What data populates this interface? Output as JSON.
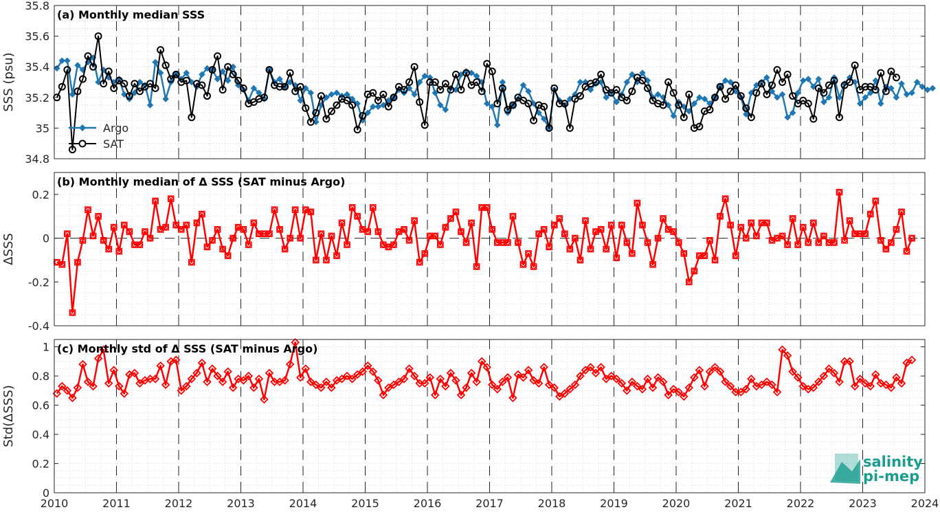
{
  "chart_data": [
    {
      "type": "line",
      "title": "(a) Monthly median SSS",
      "ylabel": "SSS (psu)",
      "xlim": [
        2010,
        2024
      ],
      "ylim": [
        34.8,
        35.8
      ],
      "xticks": [
        2010,
        2011,
        2012,
        2013,
        2014,
        2015,
        2016,
        2017,
        2018,
        2019,
        2020,
        2021,
        2022,
        2023,
        2024
      ],
      "yticks": [
        34.8,
        35,
        35.2,
        35.4,
        35.6,
        35.8
      ],
      "ytick_labels": [
        "34.8",
        "35",
        "35.2",
        "35.4",
        "35.6",
        "35.8"
      ],
      "grid": true,
      "legend_position": "bottom-left",
      "series": [
        {
          "name": "Argo",
          "color": "#1f77b4",
          "marker": "diamond",
          "x_start": 2010.0417,
          "x_step": 0.08333,
          "values": [
            35.39,
            35.44,
            35.44,
            35.22,
            35.41,
            35.38,
            35.43,
            35.46,
            35.3,
            35.38,
            35.33,
            35.3,
            35.32,
            35.22,
            35.19,
            35.23,
            35.3,
            35.28,
            35.15,
            35.43,
            35.36,
            35.19,
            35.3,
            35.35,
            35.32,
            35.36,
            35.3,
            35.27,
            35.35,
            35.39,
            35.38,
            35.32,
            35.37,
            35.31,
            35.4,
            35.28,
            35.25,
            35.18,
            35.26,
            35.23,
            35.19,
            35.38,
            35.3,
            35.32,
            35.27,
            35.3,
            35.28,
            35.18,
            35.26,
            35.23,
            35.04,
            35.15,
            35.2,
            35.22,
            35.23,
            35.21,
            35.22,
            35.19,
            35.16,
            35.05,
            35.1,
            35.14,
            35.14,
            35.15,
            35.18,
            35.2,
            35.25,
            35.23,
            35.26,
            35.22,
            35.3,
            35.34,
            35.33,
            35.23,
            35.15,
            35.12,
            35.26,
            35.25,
            35.35,
            35.37,
            35.36,
            35.34,
            35.3,
            35.16,
            35.14,
            35.02,
            35.3,
            35.1,
            35.15,
            35.19,
            35.28,
            35.24,
            35.16,
            35.1,
            35.06,
            35.0,
            35.25,
            35.18,
            35.15,
            35.19,
            35.22,
            35.3,
            35.3,
            35.25,
            35.29,
            35.3,
            35.2,
            35.23,
            35.17,
            35.22,
            35.3,
            35.35,
            35.3,
            35.36,
            35.31,
            35.2,
            35.22,
            35.2,
            35.15,
            35.08,
            35.17,
            35.14,
            35.11,
            35.16,
            35.2,
            35.19,
            35.16,
            35.2,
            35.27,
            35.31,
            35.3,
            35.24,
            35.2,
            35.09,
            35.23,
            35.28,
            35.3,
            35.33,
            35.24,
            35.2,
            35.22,
            35.07,
            35.1,
            35.23,
            35.31,
            35.32,
            35.27,
            35.32,
            35.17,
            35.2,
            35.33,
            35.2,
            35.29,
            35.33,
            35.3,
            35.16,
            35.2,
            35.23,
            35.31,
            35.16,
            35.27,
            35.26,
            35.2,
            35.29,
            35.22,
            35.23,
            35.3,
            35.27,
            35.25,
            35.26
          ]
        },
        {
          "name": "SAT",
          "color": "#000000",
          "marker": "circle",
          "x_start": 2010.0417,
          "x_step": 0.08333,
          "values": [
            35.2,
            35.27,
            35.38,
            34.86,
            35.24,
            35.32,
            35.47,
            35.4,
            35.6,
            35.29,
            35.37,
            35.26,
            35.31,
            35.29,
            35.21,
            35.29,
            35.24,
            35.27,
            35.29,
            35.26,
            35.51,
            35.41,
            35.32,
            35.35,
            35.3,
            35.31,
            35.07,
            35.29,
            35.28,
            35.21,
            35.38,
            35.47,
            35.25,
            35.4,
            35.35,
            35.31,
            35.26,
            35.16,
            35.17,
            35.19,
            35.2,
            35.38,
            35.28,
            35.27,
            35.27,
            35.36,
            35.24,
            35.27,
            35.13,
            35.04,
            35.1,
            35.21,
            35.06,
            35.11,
            35.15,
            35.19,
            35.18,
            35.15,
            34.99,
            35.08,
            35.22,
            35.23,
            35.18,
            35.22,
            35.14,
            35.2,
            35.27,
            35.25,
            35.3,
            35.4,
            35.17,
            35.02,
            35.3,
            35.3,
            35.25,
            35.29,
            35.25,
            35.35,
            35.25,
            35.36,
            35.28,
            35.3,
            35.24,
            35.42,
            35.37,
            35.16,
            35.26,
            35.12,
            35.15,
            35.2,
            35.18,
            35.16,
            35.05,
            35.15,
            35.14,
            35.0,
            35.26,
            35.16,
            35.16,
            35.0,
            35.19,
            35.21,
            35.27,
            35.29,
            35.3,
            35.35,
            35.25,
            35.23,
            35.25,
            35.2,
            35.18,
            35.24,
            35.33,
            35.31,
            35.26,
            35.18,
            35.16,
            35.15,
            35.3,
            35.23,
            35.15,
            35.07,
            35.22,
            35.0,
            35.01,
            35.11,
            35.12,
            35.2,
            35.27,
            35.19,
            35.24,
            35.28,
            35.21,
            35.13,
            35.07,
            35.23,
            35.29,
            35.22,
            35.28,
            35.38,
            35.3,
            35.35,
            35.21,
            35.16,
            35.18,
            35.16,
            35.06,
            35.26,
            35.23,
            35.28,
            35.31,
            35.07,
            35.28,
            35.3,
            35.41,
            35.25,
            35.27,
            35.27,
            35.25,
            35.36,
            35.24,
            35.37,
            35.33
          ]
        }
      ]
    },
    {
      "type": "line",
      "title": "(b) Monthly median of Δ SSS (SAT minus Argo)",
      "ylabel": "ΔSSS",
      "xlim": [
        2010,
        2024
      ],
      "ylim": [
        -0.4,
        0.3
      ],
      "yticks": [
        -0.4,
        -0.2,
        0,
        0.2
      ],
      "ytick_labels": [
        "-0.4",
        "-0.2",
        "0",
        "0.2"
      ],
      "zero_line": true,
      "grid": true,
      "series": [
        {
          "name": "",
          "color": "#ff0000",
          "marker": "square",
          "x_start": 2010.0417,
          "x_step": 0.08333,
          "values": [
            -0.11,
            -0.12,
            0.02,
            -0.34,
            -0.11,
            -0.01,
            0.13,
            0.01,
            0.1,
            -0.01,
            -0.05,
            0.05,
            -0.06,
            0.06,
            0.03,
            -0.03,
            -0.03,
            0.03,
            0.0,
            0.17,
            0.04,
            0.05,
            0.18,
            0.06,
            0.04,
            0.06,
            -0.11,
            0.07,
            0.11,
            -0.04,
            -0.01,
            0.04,
            -0.05,
            -0.08,
            0.0,
            0.05,
            0.04,
            -0.03,
            0.07,
            0.02,
            0.02,
            0.02,
            0.13,
            0.04,
            -0.05,
            0.0,
            0.13,
            0.0,
            0.13,
            0.12,
            -0.1,
            0.02,
            -0.1,
            0.01,
            -0.08,
            0.07,
            -0.03,
            0.14,
            0.1,
            0.04,
            0.03,
            0.14,
            0.03,
            -0.03,
            -0.04,
            -0.03,
            0.03,
            0.04,
            -0.01,
            0.08,
            -0.11,
            -0.07,
            0.01,
            0.01,
            -0.03,
            0.05,
            0.09,
            0.12,
            0.03,
            -0.02,
            0.07,
            -0.13,
            0.14,
            0.14,
            0.04,
            -0.02,
            -0.02,
            -0.02,
            0.1,
            -0.02,
            -0.12,
            -0.07,
            -0.13,
            0.02,
            0.04,
            -0.04,
            0.06,
            0.09,
            0.02,
            -0.05,
            0.0,
            -0.1,
            0.08,
            -0.05,
            0.03,
            0.04,
            -0.05,
            0.06,
            -0.09,
            0.06,
            -0.02,
            -0.07,
            0.16,
            0.06,
            -0.02,
            -0.12,
            0.0,
            0.09,
            0.04,
            0.03,
            -0.02,
            -0.07,
            -0.2,
            -0.15,
            -0.08,
            -0.08,
            -0.01,
            -0.1,
            0.1,
            0.18,
            0.06,
            -0.08,
            0.05,
            0.0,
            0.07,
            0.01,
            0.07,
            0.07,
            -0.01,
            0.0,
            0.01,
            -0.03,
            0.09,
            -0.03,
            0.05,
            -0.02,
            0.07,
            -0.02,
            0.01,
            -0.02,
            -0.02,
            0.21,
            -0.01,
            0.08,
            0.02,
            0.02,
            0.02,
            0.11,
            0.17,
            -0.01,
            -0.05,
            -0.02,
            0.04,
            0.12,
            -0.06,
            0.0
          ]
        }
      ]
    },
    {
      "type": "line",
      "title": "(c) Monthly std of Δ SSS (SAT minus Argo)",
      "ylabel": "Std(ΔSSS)",
      "xlim": [
        2010,
        2024
      ],
      "ylim": [
        0,
        1.05
      ],
      "yticks": [
        0,
        0.2,
        0.4,
        0.6,
        0.8,
        1
      ],
      "ytick_labels": [
        "0",
        "0.2",
        "0.4",
        "0.6",
        "0.8",
        "1"
      ],
      "grid": true,
      "series": [
        {
          "name": "",
          "color": "#ff0000",
          "marker": "diamond",
          "x_start": 2010.0417,
          "x_step": 0.08333,
          "values": [
            0.68,
            0.73,
            0.7,
            0.65,
            0.72,
            0.88,
            0.76,
            0.73,
            0.92,
            0.98,
            0.75,
            0.84,
            0.73,
            0.68,
            0.81,
            0.82,
            0.75,
            0.77,
            0.78,
            0.78,
            0.87,
            0.74,
            0.9,
            0.91,
            0.7,
            0.73,
            0.78,
            0.82,
            0.89,
            0.76,
            0.85,
            0.8,
            0.76,
            0.83,
            0.72,
            0.78,
            0.77,
            0.8,
            0.72,
            0.78,
            0.64,
            0.82,
            0.76,
            0.76,
            0.77,
            0.88,
            1.03,
            0.79,
            0.85,
            0.76,
            0.74,
            0.72,
            0.76,
            0.72,
            0.77,
            0.78,
            0.8,
            0.78,
            0.81,
            0.83,
            0.87,
            0.83,
            0.77,
            0.67,
            0.72,
            0.74,
            0.76,
            0.78,
            0.85,
            0.8,
            0.75,
            0.75,
            0.79,
            0.67,
            0.78,
            0.73,
            0.82,
            0.77,
            0.67,
            0.72,
            0.82,
            0.76,
            0.9,
            0.86,
            0.74,
            0.71,
            0.76,
            0.79,
            0.65,
            0.81,
            0.79,
            0.84,
            0.77,
            0.75,
            0.86,
            0.74,
            0.72,
            0.66,
            0.68,
            0.71,
            0.74,
            0.8,
            0.84,
            0.86,
            0.82,
            0.86,
            0.78,
            0.8,
            0.78,
            0.75,
            0.7,
            0.76,
            0.73,
            0.71,
            0.78,
            0.72,
            0.79,
            0.76,
            0.67,
            0.71,
            0.69,
            0.66,
            0.72,
            0.79,
            0.84,
            0.73,
            0.83,
            0.86,
            0.83,
            0.76,
            0.73,
            0.69,
            0.69,
            0.71,
            0.78,
            0.73,
            0.74,
            0.76,
            0.74,
            0.69,
            0.98,
            0.94,
            0.83,
            0.79,
            0.73,
            0.71,
            0.72,
            0.76,
            0.8,
            0.85,
            0.82,
            0.76,
            0.9,
            0.9,
            0.73,
            0.78,
            0.75,
            0.73,
            0.81,
            0.75,
            0.74,
            0.72,
            0.79,
            0.75,
            0.89,
            0.91
          ]
        }
      ]
    }
  ],
  "logo": {
    "line1": "salinity",
    "line2": "pi-mep"
  }
}
